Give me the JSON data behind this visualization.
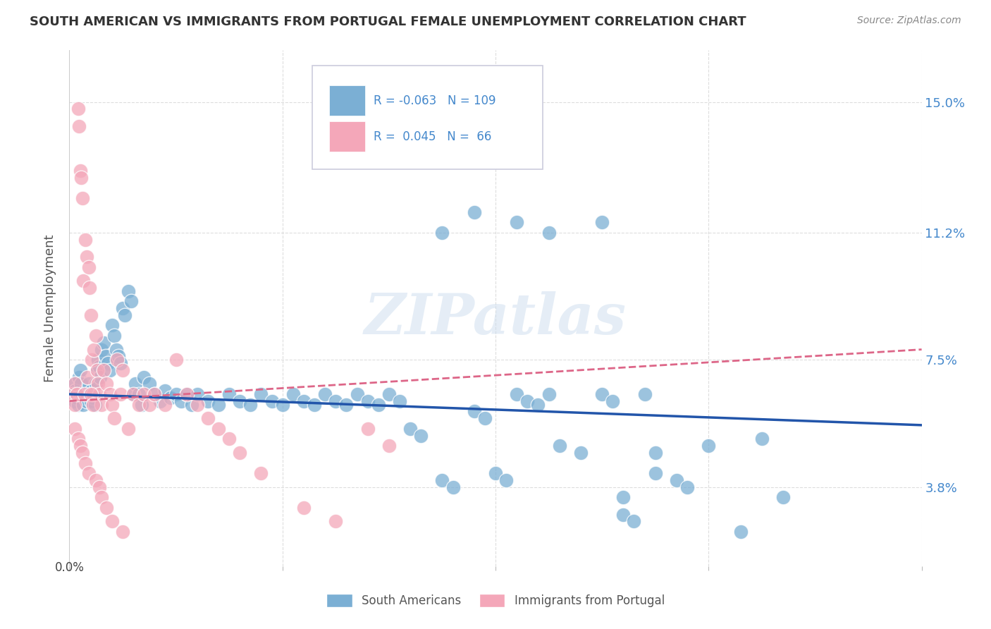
{
  "title": "SOUTH AMERICAN VS IMMIGRANTS FROM PORTUGAL FEMALE UNEMPLOYMENT CORRELATION CHART",
  "source": "Source: ZipAtlas.com",
  "ylabel": "Female Unemployment",
  "yticks": [
    0.038,
    0.075,
    0.112,
    0.15
  ],
  "ytick_labels": [
    "3.8%",
    "7.5%",
    "11.2%",
    "15.0%"
  ],
  "xmin": 0.0,
  "xmax": 0.8,
  "ymin": 0.015,
  "ymax": 0.165,
  "blue_R": "-0.063",
  "blue_N": "109",
  "pink_R": "0.045",
  "pink_N": "66",
  "blue_color": "#7bafd4",
  "pink_color": "#f4a7b9",
  "blue_line_color": "#2255aa",
  "pink_line_color": "#dd6688",
  "legend_label_blue": "South Americans",
  "legend_label_pink": "Immigrants from Portugal",
  "watermark": "ZIPatlas",
  "background_color": "#ffffff",
  "grid_color": "#dddddd",
  "title_color": "#333333",
  "axis_label_color": "#4488cc",
  "blue_line_start_y": 0.065,
  "blue_line_end_y": 0.056,
  "pink_line_start_y": 0.063,
  "pink_line_end_y": 0.078,
  "blue_x": [
    0.004,
    0.005,
    0.005,
    0.006,
    0.007,
    0.008,
    0.009,
    0.01,
    0.01,
    0.011,
    0.012,
    0.013,
    0.014,
    0.015,
    0.016,
    0.017,
    0.018,
    0.019,
    0.02,
    0.021,
    0.022,
    0.023,
    0.024,
    0.025,
    0.026,
    0.027,
    0.028,
    0.029,
    0.03,
    0.032,
    0.034,
    0.036,
    0.038,
    0.04,
    0.042,
    0.044,
    0.046,
    0.048,
    0.05,
    0.052,
    0.055,
    0.058,
    0.06,
    0.062,
    0.065,
    0.068,
    0.07,
    0.075,
    0.08,
    0.085,
    0.09,
    0.095,
    0.1,
    0.105,
    0.11,
    0.115,
    0.12,
    0.13,
    0.14,
    0.15,
    0.16,
    0.17,
    0.18,
    0.19,
    0.2,
    0.21,
    0.22,
    0.23,
    0.24,
    0.25,
    0.26,
    0.27,
    0.28,
    0.29,
    0.3,
    0.31,
    0.32,
    0.33,
    0.35,
    0.36,
    0.38,
    0.39,
    0.4,
    0.41,
    0.42,
    0.43,
    0.44,
    0.45,
    0.46,
    0.48,
    0.5,
    0.51,
    0.52,
    0.53,
    0.54,
    0.55,
    0.57,
    0.58,
    0.6,
    0.63,
    0.35,
    0.38,
    0.42,
    0.45,
    0.5,
    0.52,
    0.55,
    0.65,
    0.67
  ],
  "blue_y": [
    0.065,
    0.063,
    0.068,
    0.066,
    0.064,
    0.062,
    0.07,
    0.072,
    0.065,
    0.068,
    0.065,
    0.062,
    0.064,
    0.066,
    0.063,
    0.065,
    0.068,
    0.065,
    0.063,
    0.066,
    0.064,
    0.065,
    0.062,
    0.068,
    0.072,
    0.075,
    0.073,
    0.07,
    0.078,
    0.08,
    0.076,
    0.074,
    0.072,
    0.085,
    0.082,
    0.078,
    0.076,
    0.074,
    0.09,
    0.088,
    0.095,
    0.092,
    0.065,
    0.068,
    0.065,
    0.062,
    0.07,
    0.068,
    0.065,
    0.063,
    0.066,
    0.064,
    0.065,
    0.063,
    0.065,
    0.062,
    0.065,
    0.063,
    0.062,
    0.065,
    0.063,
    0.062,
    0.065,
    0.063,
    0.062,
    0.065,
    0.063,
    0.062,
    0.065,
    0.063,
    0.062,
    0.065,
    0.063,
    0.062,
    0.065,
    0.063,
    0.055,
    0.053,
    0.04,
    0.038,
    0.06,
    0.058,
    0.042,
    0.04,
    0.065,
    0.063,
    0.062,
    0.065,
    0.05,
    0.048,
    0.065,
    0.063,
    0.03,
    0.028,
    0.065,
    0.048,
    0.04,
    0.038,
    0.05,
    0.025,
    0.112,
    0.118,
    0.115,
    0.112,
    0.115,
    0.035,
    0.042,
    0.052,
    0.035
  ],
  "pink_x": [
    0.003,
    0.005,
    0.005,
    0.007,
    0.008,
    0.009,
    0.01,
    0.011,
    0.012,
    0.013,
    0.014,
    0.015,
    0.016,
    0.017,
    0.018,
    0.019,
    0.02,
    0.021,
    0.022,
    0.023,
    0.025,
    0.026,
    0.027,
    0.028,
    0.03,
    0.032,
    0.035,
    0.038,
    0.04,
    0.042,
    0.045,
    0.048,
    0.05,
    0.055,
    0.06,
    0.065,
    0.07,
    0.075,
    0.08,
    0.09,
    0.1,
    0.11,
    0.12,
    0.13,
    0.14,
    0.15,
    0.16,
    0.18,
    0.22,
    0.25,
    0.28,
    0.3,
    0.005,
    0.008,
    0.01,
    0.012,
    0.015,
    0.018,
    0.02,
    0.022,
    0.025,
    0.028,
    0.03,
    0.035,
    0.04,
    0.05
  ],
  "pink_y": [
    0.065,
    0.062,
    0.068,
    0.065,
    0.148,
    0.143,
    0.13,
    0.128,
    0.122,
    0.098,
    0.065,
    0.11,
    0.105,
    0.07,
    0.102,
    0.096,
    0.088,
    0.075,
    0.065,
    0.078,
    0.082,
    0.072,
    0.068,
    0.065,
    0.062,
    0.072,
    0.068,
    0.065,
    0.062,
    0.058,
    0.075,
    0.065,
    0.072,
    0.055,
    0.065,
    0.062,
    0.065,
    0.062,
    0.065,
    0.062,
    0.075,
    0.065,
    0.062,
    0.058,
    0.055,
    0.052,
    0.048,
    0.042,
    0.032,
    0.028,
    0.055,
    0.05,
    0.055,
    0.052,
    0.05,
    0.048,
    0.045,
    0.042,
    0.065,
    0.062,
    0.04,
    0.038,
    0.035,
    0.032,
    0.028,
    0.025
  ]
}
